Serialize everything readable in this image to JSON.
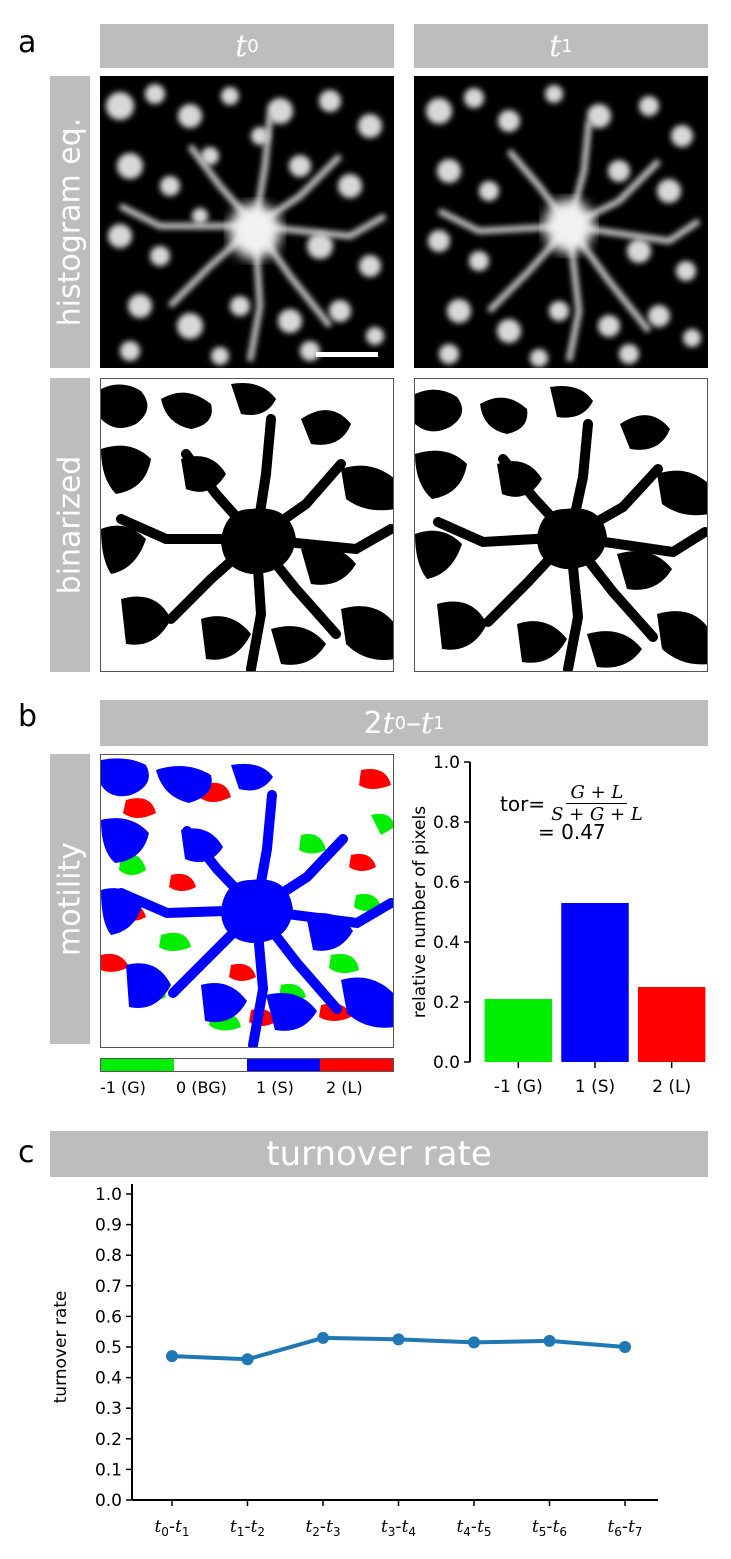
{
  "panels": {
    "a": {
      "letter": "a",
      "columns": [
        {
          "var": "t",
          "sub": "0"
        },
        {
          "var": "t",
          "sub": "1"
        }
      ],
      "rows": [
        "histogram eq.",
        "binarized"
      ]
    },
    "b": {
      "letter": "b",
      "title_coef": "2",
      "title_var1": "t",
      "title_sub1": "0",
      "title_dash": "–",
      "title_var2": "t",
      "title_sub2": "1",
      "row_label": "motility",
      "colorbar_labels": [
        "-1 (G)",
        "0 (BG)",
        "1 (S)",
        "2 (L)"
      ],
      "formula": {
        "prefix": "tor=",
        "numerator": "G + L",
        "denominator": "S + G + L",
        "result": "= 0.47"
      }
    },
    "c": {
      "letter": "c",
      "title": "turnover rate"
    }
  },
  "colors": {
    "gain": "#00ee00",
    "stable": "#0000ff",
    "loss": "#ff0000",
    "background": "#ffffff",
    "header_bar": "#bdbdbd",
    "line": "#1f77b4"
  },
  "chart_data": [
    {
      "type": "bar",
      "categories": [
        "-1 (G)",
        "1 (S)",
        "2 (L)"
      ],
      "values": [
        0.21,
        0.53,
        0.25
      ],
      "colors": [
        "#00ee00",
        "#0000ff",
        "#ff0000"
      ],
      "ylabel": "relative number of pixels",
      "ylim": [
        0.0,
        1.0
      ],
      "yticks": [
        "0.0",
        "0.2",
        "0.4",
        "0.6",
        "0.8",
        "1.0"
      ]
    },
    {
      "type": "line",
      "categories": [
        "t0-t1",
        "t1-t2",
        "t2-t3",
        "t3-t4",
        "t4-t5",
        "t5-t6",
        "t6-t7"
      ],
      "tick_labels": [
        [
          "t",
          "0",
          "t",
          "1"
        ],
        [
          "t",
          "1",
          "t",
          "2"
        ],
        [
          "t",
          "2",
          "t",
          "3"
        ],
        [
          "t",
          "3",
          "t",
          "4"
        ],
        [
          "t",
          "4",
          "t",
          "5"
        ],
        [
          "t",
          "5",
          "t",
          "6"
        ],
        [
          "t",
          "6",
          "t",
          "7"
        ]
      ],
      "values": [
        0.47,
        0.46,
        0.53,
        0.525,
        0.515,
        0.52,
        0.5
      ],
      "ylabel": "turnover rate",
      "ylim": [
        0.0,
        1.0
      ],
      "yticks": [
        "0.0",
        "0.1",
        "0.2",
        "0.3",
        "0.4",
        "0.5",
        "0.6",
        "0.7",
        "0.8",
        "0.9",
        "1.0"
      ]
    }
  ]
}
